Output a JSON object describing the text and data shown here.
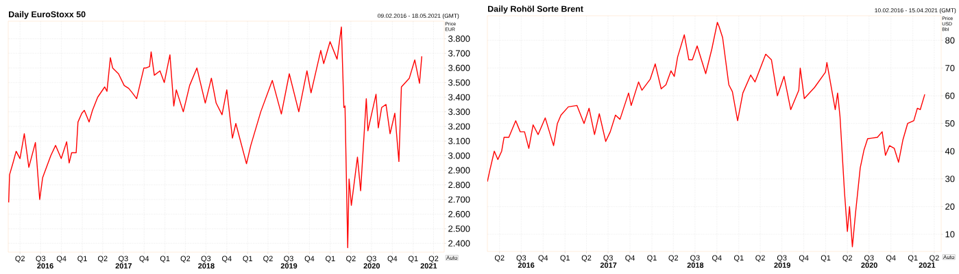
{
  "chart_data": [
    {
      "type": "line",
      "title": "Daily EuroStoxx 50",
      "subtitle": "09.02.2016 - 18.05.2021 (GMT)",
      "ylabel": "Price EUR",
      "color": "#ff0000",
      "grid": true,
      "marker": "none",
      "line_style": "solid",
      "x": [
        "2016-02-11",
        "2016-02-15",
        "2016-03-01",
        "2016-03-15",
        "2016-04-01",
        "2016-04-20",
        "2016-05-10",
        "2016-06-08",
        "2016-06-27",
        "2016-07-10",
        "2016-08-15",
        "2016-09-05",
        "2016-09-30",
        "2016-10-24",
        "2016-11-04",
        "2016-11-15",
        "2016-12-05",
        "2016-12-13",
        "2016-12-30",
        "2017-01-10",
        "2017-01-31",
        "2017-02-15",
        "2017-03-10",
        "2017-04-10",
        "2017-04-20",
        "2017-05-05",
        "2017-05-15",
        "2017-06-10",
        "2017-07-05",
        "2017-07-25",
        "2017-08-10",
        "2017-08-29",
        "2017-09-30",
        "2017-10-10",
        "2017-10-25",
        "2017-11-01",
        "2017-11-15",
        "2017-12-10",
        "2017-12-29",
        "2018-01-23",
        "2018-02-09",
        "2018-02-20",
        "2018-03-23",
        "2018-04-20",
        "2018-05-22",
        "2018-06-28",
        "2018-07-25",
        "2018-08-15",
        "2018-09-10",
        "2018-10-01",
        "2018-10-26",
        "2018-11-10",
        "2018-12-27",
        "2019-01-15",
        "2019-02-28",
        "2019-04-20",
        "2019-05-30",
        "2019-07-04",
        "2019-08-15",
        "2019-09-20",
        "2019-10-08",
        "2019-11-20",
        "2019-12-03",
        "2019-12-31",
        "2020-01-31",
        "2020-02-19",
        "2020-03-01",
        "2020-03-06",
        "2020-03-18",
        "2020-03-24",
        "2020-04-03",
        "2020-04-30",
        "2020-05-14",
        "2020-06-08",
        "2020-06-15",
        "2020-07-21",
        "2020-07-31",
        "2020-08-15",
        "2020-09-03",
        "2020-09-21",
        "2020-10-12",
        "2020-10-30",
        "2020-11-10",
        "2020-12-15",
        "2021-01-08",
        "2021-01-29",
        "2021-02-08"
      ],
      "values": [
        2680,
        2870,
        2950,
        3030,
        2980,
        3150,
        2920,
        3090,
        2700,
        2850,
        3000,
        3070,
        2980,
        3095,
        2950,
        3020,
        3020,
        3230,
        3290,
        3310,
        3230,
        3310,
        3400,
        3470,
        3440,
        3670,
        3600,
        3560,
        3480,
        3460,
        3430,
        3390,
        3600,
        3600,
        3610,
        3710,
        3550,
        3580,
        3500,
        3690,
        3340,
        3450,
        3300,
        3480,
        3600,
        3360,
        3530,
        3360,
        3280,
        3450,
        3120,
        3220,
        2945,
        3070,
        3300,
        3515,
        3285,
        3560,
        3300,
        3580,
        3430,
        3720,
        3630,
        3780,
        3660,
        3880,
        3330,
        3340,
        2370,
        2840,
        2660,
        2990,
        2760,
        3390,
        3170,
        3420,
        3190,
        3330,
        3350,
        3150,
        3290,
        2960,
        3470,
        3530,
        3655,
        3495,
        3680
      ],
      "xlim": [
        "2016-02-09",
        "2021-05-18"
      ],
      "ylim": [
        2340,
        3920
      ],
      "xticks": [
        {
          "value": "2016-04-01",
          "label": "Q2"
        },
        {
          "value": "2016-07-01",
          "label": "Q3"
        },
        {
          "value": "2016-10-01",
          "label": "Q4"
        },
        {
          "value": "2017-01-01",
          "label": "Q1"
        },
        {
          "value": "2017-04-01",
          "label": "Q2"
        },
        {
          "value": "2017-07-01",
          "label": "Q3"
        },
        {
          "value": "2017-10-01",
          "label": "Q4"
        },
        {
          "value": "2018-01-01",
          "label": "Q1"
        },
        {
          "value": "2018-04-01",
          "label": "Q2"
        },
        {
          "value": "2018-07-01",
          "label": "Q3"
        },
        {
          "value": "2018-10-01",
          "label": "Q4"
        },
        {
          "value": "2019-01-01",
          "label": "Q1"
        },
        {
          "value": "2019-04-01",
          "label": "Q2"
        },
        {
          "value": "2019-07-01",
          "label": "Q3"
        },
        {
          "value": "2019-10-01",
          "label": "Q4"
        },
        {
          "value": "2020-01-01",
          "label": "Q1"
        },
        {
          "value": "2020-04-01",
          "label": "Q2"
        },
        {
          "value": "2020-07-01",
          "label": "Q3"
        },
        {
          "value": "2020-10-01",
          "label": "Q4"
        },
        {
          "value": "2021-01-01",
          "label": "Q1"
        },
        {
          "value": "2021-04-01",
          "label": "Q2"
        }
      ],
      "yticks": [
        {
          "value": 2400,
          "label": "2.400"
        },
        {
          "value": 2500,
          "label": "2.500"
        },
        {
          "value": 2600,
          "label": "2.600"
        },
        {
          "value": 2700,
          "label": "2.700"
        },
        {
          "value": 2800,
          "label": "2.800"
        },
        {
          "value": 2900,
          "label": "2.900"
        },
        {
          "value": 3000,
          "label": "3.000"
        },
        {
          "value": 3100,
          "label": "3.100"
        },
        {
          "value": 3200,
          "label": "3.200"
        },
        {
          "value": 3300,
          "label": "3.300"
        },
        {
          "value": 3400,
          "label": "3.400"
        },
        {
          "value": 3500,
          "label": "3.500"
        },
        {
          "value": 3600,
          "label": "3.600"
        },
        {
          "value": 3700,
          "label": "3.700"
        },
        {
          "value": 3800,
          "label": "3.800"
        }
      ],
      "annotations": [
        "2016",
        "2017",
        "2018",
        "2019",
        "2020",
        "2021",
        "Auto"
      ]
    },
    {
      "type": "line",
      "title": "Daily Rohöl Sorte Brent",
      "subtitle": "10.02.2016 - 15.04.2021 (GMT)",
      "ylabel": "Price USD Bbl",
      "color": "#ff0000",
      "grid": true,
      "marker": "none",
      "line_style": "solid",
      "x": [
        "2016-02-10",
        "2016-02-20",
        "2016-03-10",
        "2016-03-25",
        "2016-04-10",
        "2016-04-20",
        "2016-05-10",
        "2016-06-08",
        "2016-06-27",
        "2016-07-15",
        "2016-08-02",
        "2016-08-20",
        "2016-09-10",
        "2016-10-10",
        "2016-11-14",
        "2016-11-30",
        "2016-12-15",
        "2017-01-15",
        "2017-02-20",
        "2017-03-22",
        "2017-04-12",
        "2017-05-05",
        "2017-05-25",
        "2017-06-21",
        "2017-07-10",
        "2017-08-01",
        "2017-08-20",
        "2017-09-25",
        "2017-10-06",
        "2017-11-06",
        "2017-11-20",
        "2017-12-25",
        "2018-01-15",
        "2018-02-09",
        "2018-03-01",
        "2018-03-22",
        "2018-04-05",
        "2018-04-19",
        "2018-05-17",
        "2018-06-05",
        "2018-06-20",
        "2018-07-10",
        "2018-08-15",
        "2018-09-10",
        "2018-10-03",
        "2018-10-10",
        "2018-10-25",
        "2018-11-20",
        "2018-12-05",
        "2018-12-27",
        "2019-01-18",
        "2019-02-20",
        "2019-03-10",
        "2019-04-24",
        "2019-05-18",
        "2019-06-12",
        "2019-07-10",
        "2019-08-07",
        "2019-09-10",
        "2019-09-16",
        "2019-10-03",
        "2019-11-15",
        "2019-12-31",
        "2020-01-06",
        "2020-02-10",
        "2020-02-20",
        "2020-03-01",
        "2020-03-20",
        "2020-04-01",
        "2020-04-10",
        "2020-04-22",
        "2020-05-05",
        "2020-05-25",
        "2020-06-10",
        "2020-06-25",
        "2020-08-05",
        "2020-08-25",
        "2020-09-08",
        "2020-09-25",
        "2020-10-15",
        "2020-11-02",
        "2020-11-20",
        "2020-12-10",
        "2021-01-05",
        "2021-01-20",
        "2021-02-01",
        "2021-02-20"
      ],
      "values": [
        29,
        33,
        40,
        37,
        40,
        45,
        45,
        51,
        47,
        47,
        41,
        49.5,
        46,
        52,
        42,
        50,
        53,
        56,
        56.5,
        50,
        55.5,
        46,
        53.5,
        43.5,
        47,
        53,
        51.5,
        61,
        56.5,
        65,
        62,
        66,
        71.5,
        62.5,
        64,
        69,
        67,
        74,
        82,
        73,
        73,
        78,
        68,
        77,
        86.5,
        85,
        81,
        64,
        61.5,
        51,
        61,
        67.5,
        65,
        75,
        73,
        60,
        67,
        55,
        62,
        70,
        59,
        63,
        68.5,
        72,
        55,
        61,
        52.5,
        25,
        11,
        20,
        5.5,
        17.5,
        34,
        40.5,
        44.5,
        45,
        47,
        38.5,
        42,
        41,
        36,
        44,
        50,
        51,
        55.5,
        55,
        60.5
      ],
      "xlim": [
        "2016-02-10",
        "2021-04-30"
      ],
      "ylim": [
        3.8,
        88.9
      ],
      "xticks": [
        {
          "value": "2016-04-01",
          "label": "Q2"
        },
        {
          "value": "2016-07-01",
          "label": "Q3"
        },
        {
          "value": "2016-10-01",
          "label": "Q4"
        },
        {
          "value": "2017-01-01",
          "label": "Q1"
        },
        {
          "value": "2017-04-01",
          "label": "Q2"
        },
        {
          "value": "2017-07-01",
          "label": "Q3"
        },
        {
          "value": "2017-10-01",
          "label": "Q4"
        },
        {
          "value": "2018-01-01",
          "label": "Q1"
        },
        {
          "value": "2018-04-01",
          "label": "Q2"
        },
        {
          "value": "2018-07-01",
          "label": "Q3"
        },
        {
          "value": "2018-10-01",
          "label": "Q4"
        },
        {
          "value": "2019-01-01",
          "label": "Q1"
        },
        {
          "value": "2019-04-01",
          "label": "Q2"
        },
        {
          "value": "2019-07-01",
          "label": "Q3"
        },
        {
          "value": "2019-10-01",
          "label": "Q4"
        },
        {
          "value": "2020-01-01",
          "label": "Q1"
        },
        {
          "value": "2020-04-01",
          "label": "Q2"
        },
        {
          "value": "2020-07-01",
          "label": "Q3"
        },
        {
          "value": "2020-10-01",
          "label": "Q4"
        },
        {
          "value": "2021-01-01",
          "label": "Q1"
        },
        {
          "value": "2021-04-01",
          "label": "Q2"
        }
      ],
      "yticks": [
        10,
        20,
        30,
        40,
        50,
        60,
        70,
        80
      ],
      "annotations": [
        "2016",
        "2017",
        "2018",
        "2019",
        "2020",
        "2021",
        "Auto"
      ]
    }
  ]
}
